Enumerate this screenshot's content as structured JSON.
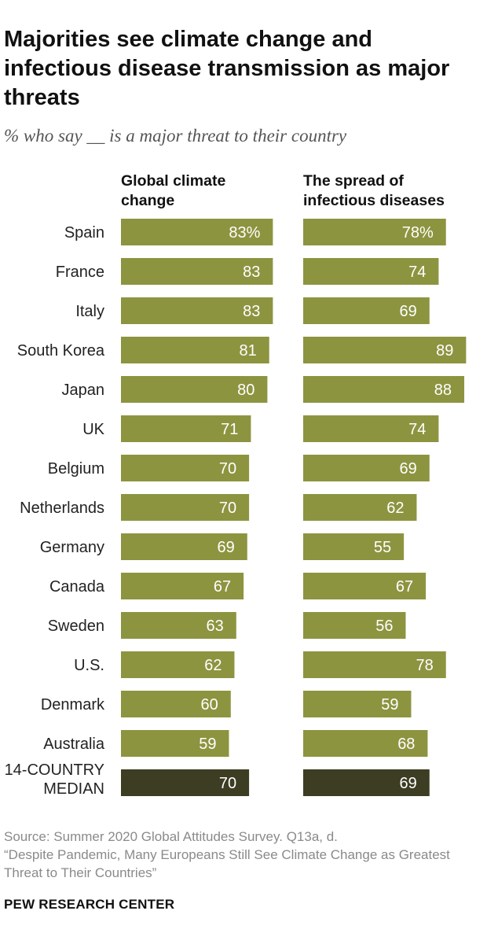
{
  "title": "Majorities see climate change and infectious disease transmission as major threats",
  "subtitle": "% who say __ is a major threat to their country",
  "source": "Source: Summer 2020 Global Attitudes Survey. Q13a, d.",
  "report": "“Despite Pandemic, Many Europeans Still See Climate Change as Greatest Threat to Their Countries”",
  "footer": "PEW RESEARCH CENTER",
  "colors": {
    "bar": "#8d9440",
    "median_bar": "#3c3d23"
  },
  "chart_data": {
    "type": "bar",
    "orientation": "horizontal",
    "categories": [
      "Spain",
      "France",
      "Italy",
      "South Korea",
      "Japan",
      "UK",
      "Belgium",
      "Netherlands",
      "Germany",
      "Canada",
      "Sweden",
      "U.S.",
      "Denmark",
      "Australia",
      "14-COUNTRY MEDIAN"
    ],
    "series": [
      {
        "name": "Global climate change",
        "values": [
          83,
          83,
          83,
          81,
          80,
          71,
          70,
          70,
          69,
          67,
          63,
          62,
          60,
          59,
          70
        ]
      },
      {
        "name": "The spread of infectious diseases",
        "values": [
          78,
          74,
          69,
          89,
          88,
          74,
          69,
          62,
          55,
          67,
          56,
          78,
          59,
          68,
          69
        ]
      }
    ],
    "first_value_suffix": "%",
    "highlighted_category": "14-COUNTRY MEDIAN",
    "xlim": [
      0,
      100
    ],
    "grid": false,
    "legend": "column headers above bars"
  }
}
